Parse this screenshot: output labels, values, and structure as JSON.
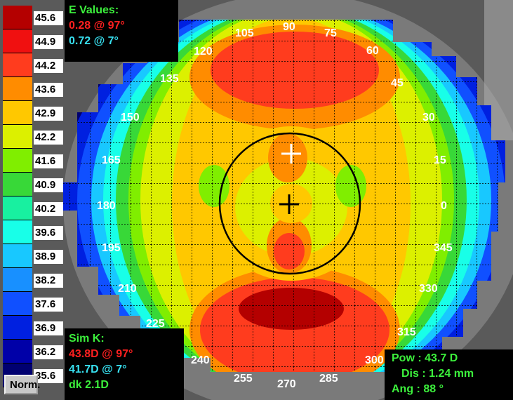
{
  "scale": {
    "values": [
      "45.6",
      "44.9",
      "44.2",
      "43.6",
      "42.9",
      "42.2",
      "41.6",
      "40.9",
      "40.2",
      "39.6",
      "38.9",
      "38.2",
      "37.6",
      "36.9",
      "36.2",
      "35.6"
    ],
    "colors": [
      "#b40000",
      "#f01010",
      "#ff3c1e",
      "#ff8c00",
      "#ffc800",
      "#dcf000",
      "#80ee00",
      "#38d838",
      "#18f0a0",
      "#18ffe8",
      "#18c8ff",
      "#1890ff",
      "#1050ff",
      "#0020e0",
      "#0000a8",
      "#000070"
    ],
    "norm_label": "Norm."
  },
  "evalues": {
    "title": "E Values:",
    "line1": "0.28 @ 97°",
    "line2": "0.72 @ 7°"
  },
  "simk": {
    "title": "Sim K:",
    "line1": "43.8D @ 97°",
    "line2": "41.7D @ 7°",
    "line3": "dk 2.1D"
  },
  "measure": {
    "pow": "Pow :  43.7 D",
    "dis": "Dis :  1.24 mm",
    "ang": "Ang :  88 °"
  },
  "axis_labels": [
    {
      "text": "90"
    },
    {
      "text": "105"
    },
    {
      "text": "75"
    },
    {
      "text": "120"
    },
    {
      "text": "60"
    },
    {
      "text": "135"
    },
    {
      "text": "45"
    },
    {
      "text": "150"
    },
    {
      "text": "30"
    },
    {
      "text": "165"
    },
    {
      "text": "15"
    },
    {
      "text": "180"
    },
    {
      "text": "0"
    },
    {
      "text": "195"
    },
    {
      "text": "345"
    },
    {
      "text": "210"
    },
    {
      "text": "330"
    },
    {
      "text": "225"
    },
    {
      "text": "315"
    },
    {
      "text": "240"
    },
    {
      "text": "300"
    },
    {
      "text": "255"
    },
    {
      "text": "270"
    },
    {
      "text": "285"
    }
  ]
}
